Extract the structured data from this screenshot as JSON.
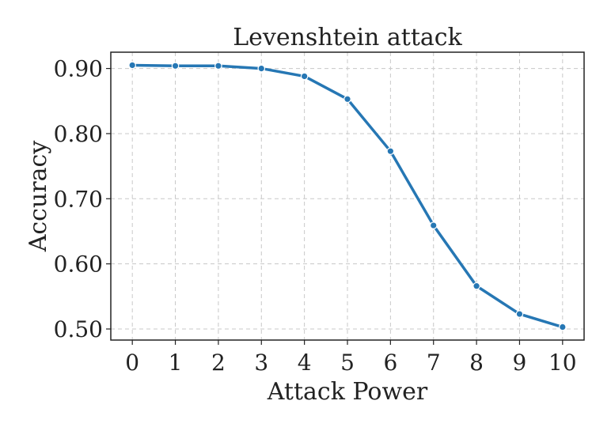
{
  "chart_data": {
    "type": "line",
    "title": "Levenshtein attack",
    "xlabel": "Attack Power",
    "ylabel": "Accuracy",
    "x": [
      0,
      1,
      2,
      3,
      4,
      5,
      6,
      7,
      8,
      9,
      10
    ],
    "xticks": [
      "0",
      "1",
      "2",
      "3",
      "4",
      "5",
      "6",
      "7",
      "8",
      "9",
      "10"
    ],
    "yticks": [
      "0.50",
      "0.60",
      "0.70",
      "0.80",
      "0.90"
    ],
    "ytick_values": [
      0.5,
      0.6,
      0.7,
      0.8,
      0.9
    ],
    "xlim": [
      -0.5,
      10.5
    ],
    "ylim": [
      0.483,
      0.925
    ],
    "grid": true,
    "series": [
      {
        "color": "#2677b4",
        "values": [
          0.905,
          0.904,
          0.904,
          0.9,
          0.888,
          0.853,
          0.773,
          0.659,
          0.566,
          0.523,
          0.503
        ]
      }
    ]
  }
}
